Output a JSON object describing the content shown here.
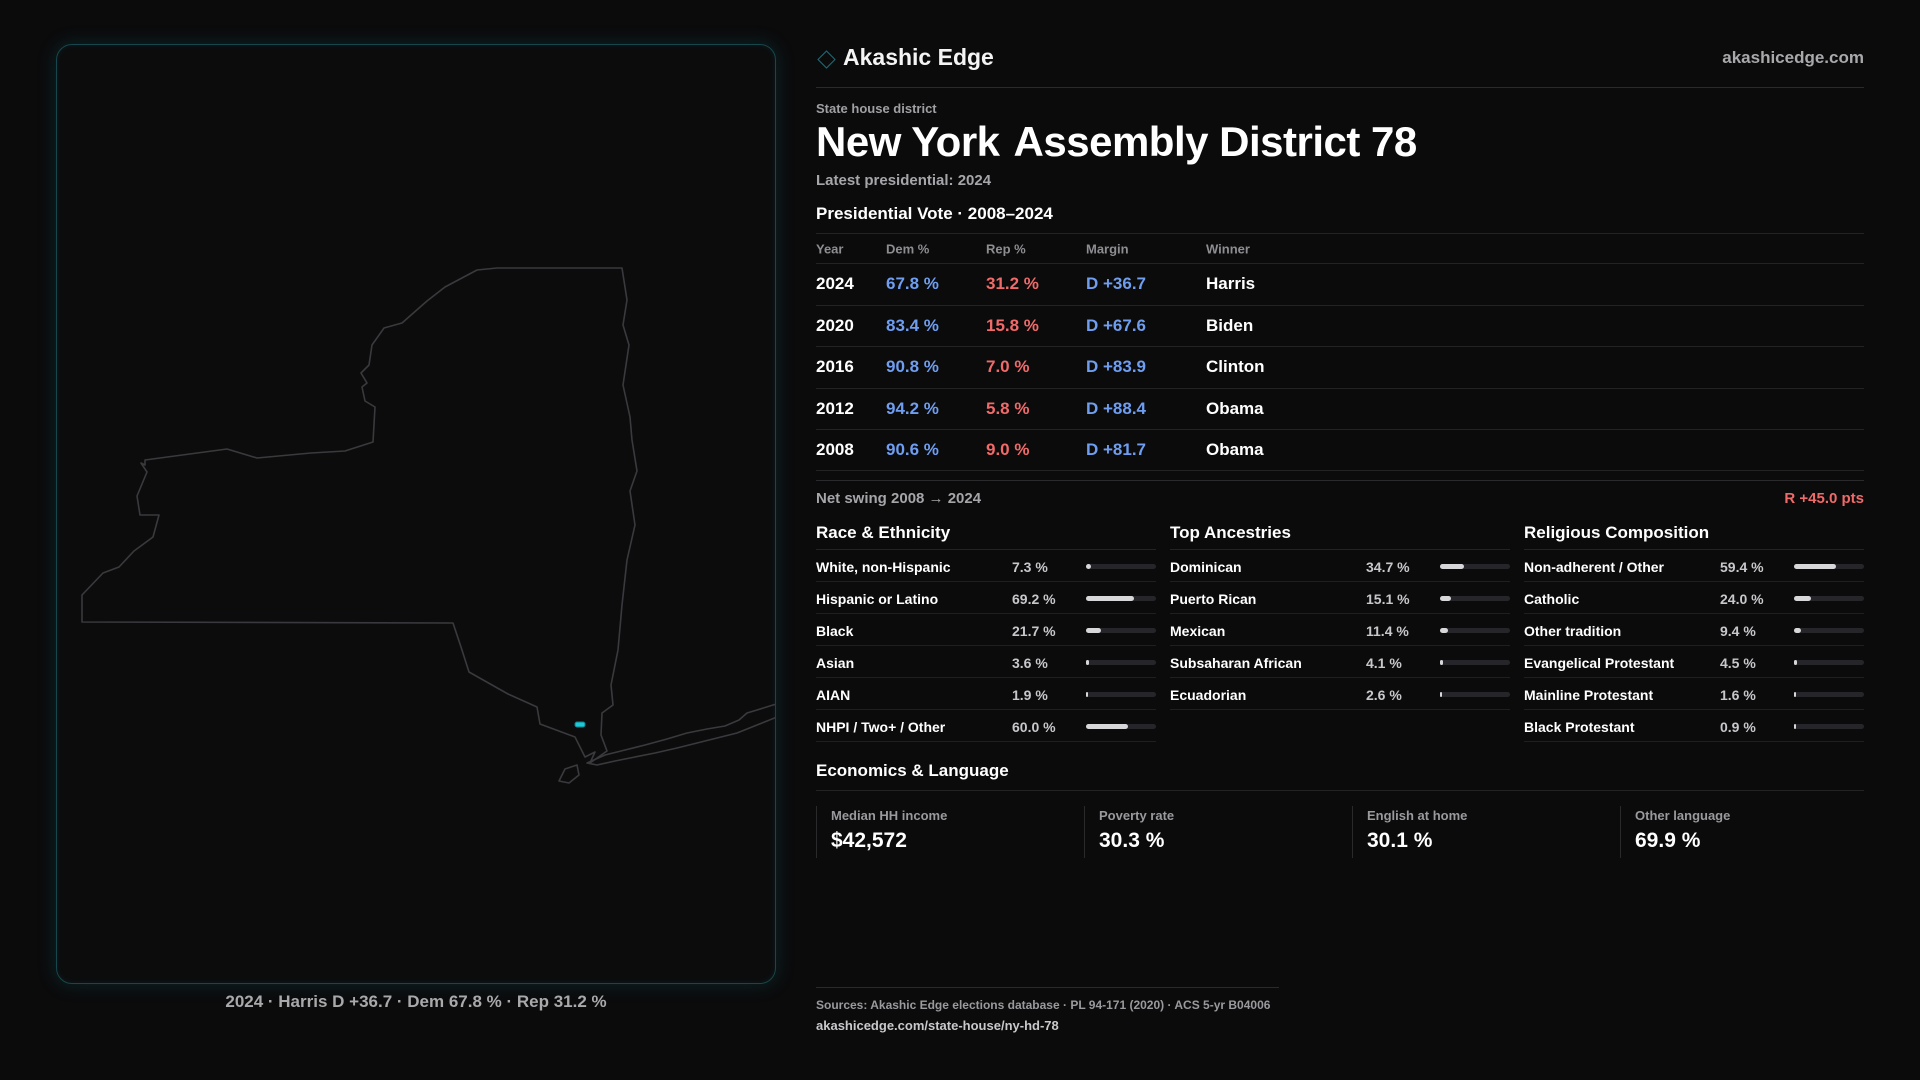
{
  "map": {
    "caption": "2024 · Harris D +36.7 · Dem 67.8 % · Rep 31.2 %"
  },
  "header": {
    "brand": "Akashic Edge",
    "site": "akashicedge.com"
  },
  "district": {
    "type_label": "State house district",
    "state": "New York",
    "name": "Assembly District 78",
    "latest": "Latest presidential: 2024"
  },
  "vote": {
    "title": "Presidential Vote · 2008–2024",
    "headers": {
      "year": "Year",
      "dem": "Dem %",
      "rep": "Rep %",
      "margin": "Margin",
      "winner": "Winner"
    },
    "rows": [
      {
        "year": "2024",
        "dem": "67.8 %",
        "rep": "31.2 %",
        "margin": "D +36.7",
        "winner": "Harris"
      },
      {
        "year": "2020",
        "dem": "83.4 %",
        "rep": "15.8 %",
        "margin": "D +67.6",
        "winner": "Biden"
      },
      {
        "year": "2016",
        "dem": "90.8 %",
        "rep": "7.0 %",
        "margin": "D +83.9",
        "winner": "Clinton"
      },
      {
        "year": "2012",
        "dem": "94.2 %",
        "rep": "5.8 %",
        "margin": "D +88.4",
        "winner": "Obama"
      },
      {
        "year": "2008",
        "dem": "90.6 %",
        "rep": "9.0 %",
        "margin": "D +81.7",
        "winner": "Obama"
      }
    ],
    "swing_label": "Net swing 2008 → 2024",
    "swing_value": "R +45.0 pts"
  },
  "race": {
    "title": "Race & Ethnicity",
    "items": [
      {
        "label": "White, non-Hispanic",
        "pct": "7.3 %",
        "value": 7.3
      },
      {
        "label": "Hispanic or Latino",
        "pct": "69.2 %",
        "value": 69.2
      },
      {
        "label": "Black",
        "pct": "21.7 %",
        "value": 21.7
      },
      {
        "label": "Asian",
        "pct": "3.6 %",
        "value": 3.6
      },
      {
        "label": "AIAN",
        "pct": "1.9 %",
        "value": 1.9
      },
      {
        "label": "NHPI / Two+ / Other",
        "pct": "60.0 %",
        "value": 60.0
      }
    ]
  },
  "ancestry": {
    "title": "Top Ancestries",
    "items": [
      {
        "label": "Dominican",
        "pct": "34.7 %",
        "value": 34.7
      },
      {
        "label": "Puerto Rican",
        "pct": "15.1 %",
        "value": 15.1
      },
      {
        "label": "Mexican",
        "pct": "11.4 %",
        "value": 11.4
      },
      {
        "label": "Subsaharan African",
        "pct": "4.1 %",
        "value": 4.1
      },
      {
        "label": "Ecuadorian",
        "pct": "2.6 %",
        "value": 2.6
      }
    ]
  },
  "religion": {
    "title": "Religious Composition",
    "items": [
      {
        "label": "Non-adherent / Other",
        "pct": "59.4 %",
        "value": 59.4
      },
      {
        "label": "Catholic",
        "pct": "24.0 %",
        "value": 24.0
      },
      {
        "label": "Other tradition",
        "pct": "9.4 %",
        "value": 9.4
      },
      {
        "label": "Evangelical Protestant",
        "pct": "4.5 %",
        "value": 4.5
      },
      {
        "label": "Mainline Protestant",
        "pct": "1.6 %",
        "value": 1.6
      },
      {
        "label": "Black Protestant",
        "pct": "0.9 %",
        "value": 0.9
      }
    ]
  },
  "economics": {
    "title": "Economics & Language",
    "cards": [
      {
        "label": "Median HH income",
        "value": "$42,572"
      },
      {
        "label": "Poverty rate",
        "value": "30.3 %"
      },
      {
        "label": "English at home",
        "value": "30.1 %"
      },
      {
        "label": "Other language",
        "value": "69.9 %"
      }
    ]
  },
  "footer": {
    "sources": "Sources: Akashic Edge elections database · PL 94-171 (2020) · ACS 5-yr B04006",
    "url": "akashicedge.com/state-house/ny-hd-78"
  },
  "colors": {
    "dem": "#6f9ef0",
    "rep": "#f06a6a",
    "accent": "#1e6d78",
    "district_marker": "#1fc8d8"
  }
}
